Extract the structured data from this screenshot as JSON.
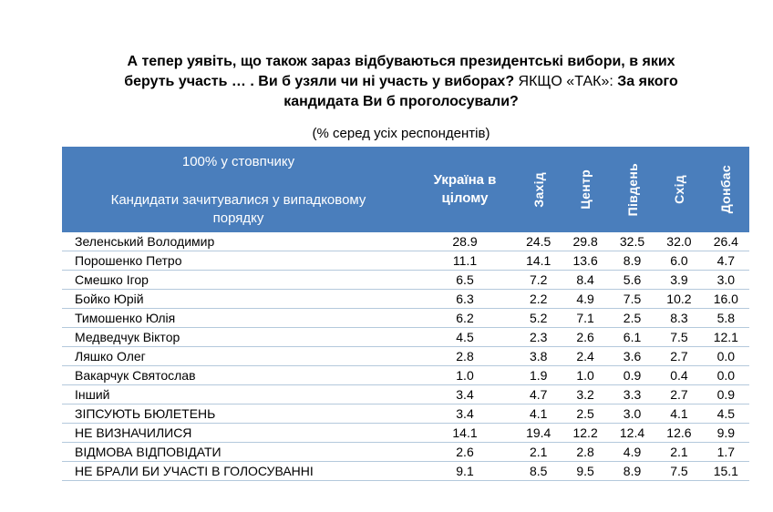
{
  "page": {
    "title_bold_1": "А тепер уявіть, що також зараз відбуваються президентські вибори, в яких беруть участь … . Ви б узяли чи ні участь у виборах?",
    "title_regular": " ЯКЩО «ТАК»: ",
    "title_bold_2": "За якого кандидата Ви б проголосували?",
    "subtitle": "(% серед усіх респондентів)"
  },
  "table": {
    "corner_note": "100% у стовпчику",
    "corner_label": "Кандидати зачитувалися у випадковому порядку",
    "col_total": "Україна в цілому",
    "region_cols": [
      "Захід",
      "Центр",
      "Південь",
      "Схід",
      "Донбас"
    ],
    "rows": [
      {
        "label": "Зеленський Володимир",
        "values": [
          "28.9",
          "24.5",
          "29.8",
          "32.5",
          "32.0",
          "26.4"
        ]
      },
      {
        "label": "Порошенко Петро",
        "values": [
          "11.1",
          "14.1",
          "13.6",
          "8.9",
          "6.0",
          "4.7"
        ]
      },
      {
        "label": "Смешко Ігор",
        "values": [
          "6.5",
          "7.2",
          "8.4",
          "5.6",
          "3.9",
          "3.0"
        ]
      },
      {
        "label": "Бойко Юрій",
        "values": [
          "6.3",
          "2.2",
          "4.9",
          "7.5",
          "10.2",
          "16.0"
        ]
      },
      {
        "label": "Тимошенко Юлія",
        "values": [
          "6.2",
          "5.2",
          "7.1",
          "2.5",
          "8.3",
          "5.8"
        ]
      },
      {
        "label": "Медведчук Віктор",
        "values": [
          "4.5",
          "2.3",
          "2.6",
          "6.1",
          "7.5",
          "12.1"
        ]
      },
      {
        "label": "Ляшко Олег",
        "values": [
          "2.8",
          "3.8",
          "2.4",
          "3.6",
          "2.7",
          "0.0"
        ]
      },
      {
        "label": "Вакарчук Святослав",
        "values": [
          "1.0",
          "1.9",
          "1.0",
          "0.9",
          "0.4",
          "0.0"
        ]
      },
      {
        "label": "Інший",
        "values": [
          "3.4",
          "4.7",
          "3.2",
          "3.3",
          "2.7",
          "0.9"
        ]
      },
      {
        "label": "ЗІПСУЮТЬ БЮЛЕТЕНЬ",
        "values": [
          "3.4",
          "4.1",
          "2.5",
          "3.0",
          "4.1",
          "4.5"
        ]
      },
      {
        "label": "НЕ ВИЗНАЧИЛИСЯ",
        "values": [
          "14.1",
          "19.4",
          "12.2",
          "12.4",
          "12.6",
          "9.9"
        ]
      },
      {
        "label": "ВІДМОВА ВІДПОВІДАТИ",
        "values": [
          "2.6",
          "2.1",
          "2.8",
          "4.9",
          "2.1",
          "1.7"
        ]
      },
      {
        "label": "НЕ БРАЛИ БИ УЧАСТІ В ГОЛОСУВАННІ",
        "values": [
          "9.1",
          "8.5",
          "9.5",
          "8.9",
          "7.5",
          "15.1"
        ]
      }
    ]
  },
  "colors": {
    "header_bg": "#4a7ebc",
    "header_text": "#ffffff",
    "row_divider": "#b4c9dc",
    "title_text": "#000000"
  }
}
